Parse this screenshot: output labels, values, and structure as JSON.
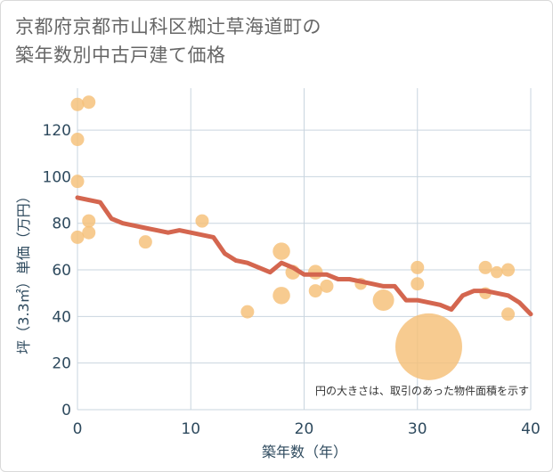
{
  "chart_data": {
    "type": "scatter",
    "title_lines": [
      "京都府京都市山科区椥辻草海道町の",
      "築年数別中古戸建て価格"
    ],
    "xlabel": "築年数（年）",
    "ylabel": "坪（3.3㎡）単価（万円）",
    "xlim": [
      0,
      40
    ],
    "ylim": [
      0,
      138
    ],
    "x_ticks": [
      0,
      10,
      20,
      30,
      40
    ],
    "y_ticks": [
      0,
      20,
      40,
      60,
      80,
      100,
      120
    ],
    "grid": true,
    "note": "円の大きさは、取引のあった物件面積を示す",
    "colors": {
      "points": "#f5c077",
      "trend": "#d4664f",
      "grid": "#c9d5df",
      "axis_text": "#2e4a5e"
    },
    "series": [
      {
        "kind": "scatter",
        "points": [
          {
            "x": 0,
            "y": 131,
            "size": 1
          },
          {
            "x": 1,
            "y": 132,
            "size": 1
          },
          {
            "x": 0,
            "y": 116,
            "size": 1
          },
          {
            "x": 0,
            "y": 98,
            "size": 1
          },
          {
            "x": 1,
            "y": 81,
            "size": 1
          },
          {
            "x": 1,
            "y": 76,
            "size": 1
          },
          {
            "x": 0,
            "y": 74,
            "size": 1
          },
          {
            "x": 6,
            "y": 72,
            "size": 1
          },
          {
            "x": 11,
            "y": 81,
            "size": 1
          },
          {
            "x": 15,
            "y": 42,
            "size": 1
          },
          {
            "x": 18,
            "y": 68,
            "size": 1.3
          },
          {
            "x": 19,
            "y": 59,
            "size": 1.1
          },
          {
            "x": 18,
            "y": 49,
            "size": 1.3
          },
          {
            "x": 21,
            "y": 59,
            "size": 1.1
          },
          {
            "x": 21,
            "y": 51,
            "size": 1
          },
          {
            "x": 22,
            "y": 53,
            "size": 1
          },
          {
            "x": 25,
            "y": 54,
            "size": 0.9
          },
          {
            "x": 27,
            "y": 47,
            "size": 1.6
          },
          {
            "x": 30,
            "y": 61,
            "size": 1
          },
          {
            "x": 30,
            "y": 54,
            "size": 1
          },
          {
            "x": 31,
            "y": 27,
            "size": 5
          },
          {
            "x": 36,
            "y": 61,
            "size": 1
          },
          {
            "x": 36,
            "y": 50,
            "size": 0.9
          },
          {
            "x": 37,
            "y": 59,
            "size": 0.9
          },
          {
            "x": 38,
            "y": 60,
            "size": 1
          },
          {
            "x": 38,
            "y": 41,
            "size": 1
          }
        ]
      },
      {
        "kind": "line",
        "points": [
          {
            "x": 0,
            "y": 91
          },
          {
            "x": 1,
            "y": 90
          },
          {
            "x": 2,
            "y": 89
          },
          {
            "x": 3,
            "y": 82
          },
          {
            "x": 4,
            "y": 80
          },
          {
            "x": 5,
            "y": 79
          },
          {
            "x": 6,
            "y": 78
          },
          {
            "x": 7,
            "y": 77
          },
          {
            "x": 8,
            "y": 76
          },
          {
            "x": 9,
            "y": 77
          },
          {
            "x": 10,
            "y": 76
          },
          {
            "x": 11,
            "y": 75
          },
          {
            "x": 12,
            "y": 74
          },
          {
            "x": 13,
            "y": 67
          },
          {
            "x": 14,
            "y": 64
          },
          {
            "x": 15,
            "y": 63
          },
          {
            "x": 16,
            "y": 61
          },
          {
            "x": 17,
            "y": 59
          },
          {
            "x": 18,
            "y": 63
          },
          {
            "x": 19,
            "y": 61
          },
          {
            "x": 20,
            "y": 58
          },
          {
            "x": 21,
            "y": 58
          },
          {
            "x": 22,
            "y": 58
          },
          {
            "x": 23,
            "y": 56
          },
          {
            "x": 24,
            "y": 56
          },
          {
            "x": 25,
            "y": 55
          },
          {
            "x": 26,
            "y": 54
          },
          {
            "x": 27,
            "y": 53
          },
          {
            "x": 28,
            "y": 53
          },
          {
            "x": 29,
            "y": 47
          },
          {
            "x": 30,
            "y": 47
          },
          {
            "x": 31,
            "y": 46
          },
          {
            "x": 32,
            "y": 45
          },
          {
            "x": 33,
            "y": 43
          },
          {
            "x": 34,
            "y": 49
          },
          {
            "x": 35,
            "y": 51
          },
          {
            "x": 36,
            "y": 51
          },
          {
            "x": 37,
            "y": 50
          },
          {
            "x": 38,
            "y": 49
          },
          {
            "x": 39,
            "y": 46
          },
          {
            "x": 40,
            "y": 41
          }
        ]
      }
    ]
  }
}
